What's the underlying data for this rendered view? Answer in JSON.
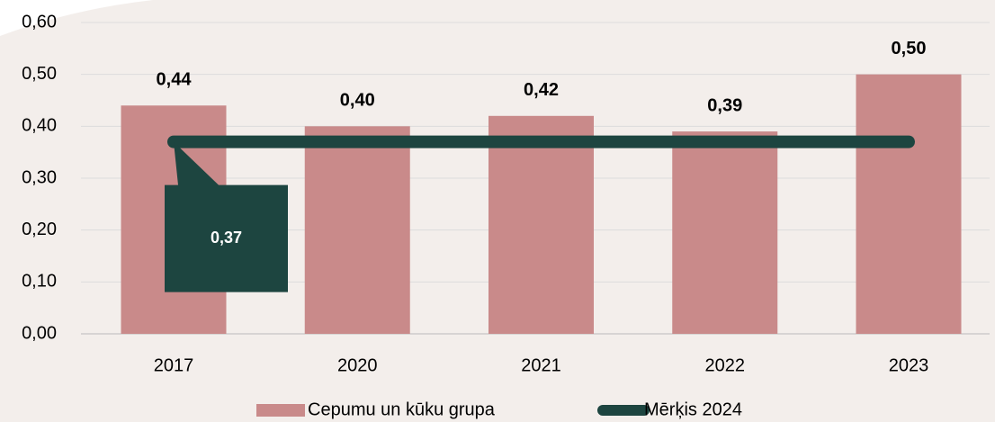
{
  "chart_data": {
    "type": "bar",
    "categories": [
      "2017",
      "2020",
      "2021",
      "2022",
      "2023"
    ],
    "series": [
      {
        "name": "Cepumu un kūku grupa",
        "color": "#c98a8a",
        "values": [
          0.44,
          0.4,
          0.42,
          0.39,
          0.5
        ],
        "value_labels": [
          "0,44",
          "0,40",
          "0,42",
          "0,39",
          "0,50"
        ]
      },
      {
        "name": "Mērķis 2024",
        "type": "line",
        "color": "#1d4540",
        "values": [
          0.37,
          0.37,
          0.37,
          0.37,
          0.37
        ],
        "value_labels": [
          "0,37",
          null,
          null,
          null,
          null
        ]
      }
    ],
    "ylim": [
      0,
      0.6
    ],
    "yticks": [
      {
        "value": 0,
        "label": "0,00"
      },
      {
        "value": 0.1,
        "label": "0,10"
      },
      {
        "value": 0.2,
        "label": "0,20"
      },
      {
        "value": 0.3,
        "label": "0,30"
      },
      {
        "value": 0.4,
        "label": "0,40"
      },
      {
        "value": 0.5,
        "label": "0,50"
      },
      {
        "value": 0.6,
        "label": "0,60"
      }
    ],
    "grid": true,
    "legend": "bottom"
  }
}
